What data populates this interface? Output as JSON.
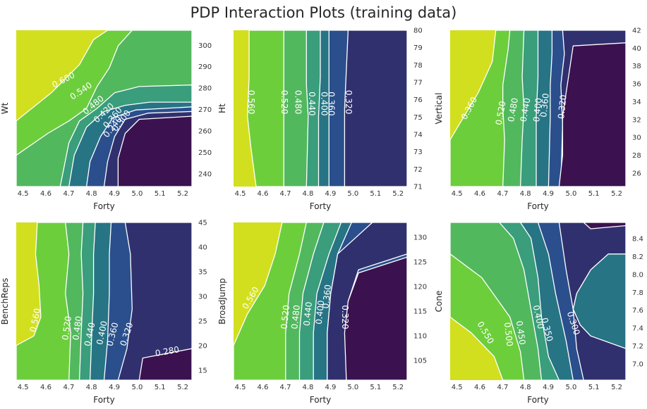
{
  "title": "PDP Interaction Plots (training data)",
  "colors": {
    "contour_levels": [
      "#d2df1f",
      "#6dce3c",
      "#52b85e",
      "#3a9d7b",
      "#277485",
      "#2a4f8c",
      "#31306f",
      "#3b124f"
    ]
  },
  "chart_data": [
    {
      "type": "contour",
      "xlabel": "Forty",
      "ylabel": "Wt",
      "x_ticks": [
        "4.5",
        "4.6",
        "4.7",
        "4.8",
        "4.9",
        "5.0",
        "5.1",
        "5.2"
      ],
      "y_ticks": [
        "240",
        "250",
        "260",
        "270",
        "280",
        "290",
        "300"
      ],
      "xlim": [
        4.47,
        5.24
      ],
      "ylim": [
        234,
        307
      ],
      "contour_labels": [
        "0.600",
        "0.540",
        "0.480",
        "0.420",
        "0.360",
        "0.300",
        "0.240"
      ],
      "grid": false
    },
    {
      "type": "contour",
      "xlabel": "Forty",
      "ylabel": "Ht",
      "x_ticks": [
        "4.5",
        "4.6",
        "4.7",
        "4.8",
        "4.9",
        "5.0",
        "5.1",
        "5.2"
      ],
      "y_ticks": [
        "71",
        "72",
        "73",
        "74",
        "75",
        "76",
        "77",
        "78",
        "79",
        "80"
      ],
      "xlim": [
        4.47,
        5.24
      ],
      "ylim": [
        71,
        80
      ],
      "contour_labels": [
        "0.560",
        "0.520",
        "0.480",
        "0.440",
        "0.400",
        "0.360",
        "0.320"
      ],
      "grid": false
    },
    {
      "type": "contour",
      "xlabel": "Forty",
      "ylabel": "Vertical",
      "x_ticks": [
        "4.5",
        "4.6",
        "4.7",
        "4.8",
        "4.9",
        "5.0",
        "5.1",
        "5.2"
      ],
      "y_ticks": [
        "26",
        "28",
        "30",
        "32",
        "34",
        "36",
        "38",
        "40",
        "42"
      ],
      "xlim": [
        4.47,
        5.24
      ],
      "ylim": [
        24.5,
        42
      ],
      "contour_labels": [
        "0.360",
        "0.520",
        "0.480",
        "0.440",
        "0.400",
        "0.360",
        "0.320"
      ],
      "grid": false
    },
    {
      "type": "contour",
      "xlabel": "Forty",
      "ylabel": "BenchReps",
      "x_ticks": [
        "4.5",
        "4.6",
        "4.7",
        "4.8",
        "4.9",
        "5.0",
        "5.1",
        "5.2"
      ],
      "y_ticks": [
        "15",
        "20",
        "25",
        "30",
        "35",
        "40",
        "45"
      ],
      "xlim": [
        4.47,
        5.24
      ],
      "ylim": [
        13,
        45
      ],
      "contour_labels": [
        "0.560",
        "0.520",
        "0.480",
        "0.440",
        "0.400",
        "0.360",
        "0.320",
        "0.280"
      ],
      "grid": false
    },
    {
      "type": "contour",
      "xlabel": "Forty",
      "ylabel": "BroadJump",
      "x_ticks": [
        "4.5",
        "4.6",
        "4.7",
        "4.8",
        "4.9",
        "5.0",
        "5.1",
        "5.2"
      ],
      "y_ticks": [
        "105",
        "110",
        "115",
        "120",
        "125",
        "130"
      ],
      "xlim": [
        4.47,
        5.24
      ],
      "ylim": [
        101,
        133
      ],
      "contour_labels": [
        "0.560",
        "0.520",
        "0.480",
        "0.440",
        "0.400",
        "0.360",
        "0.320"
      ],
      "grid": false
    },
    {
      "type": "contour",
      "xlabel": "Forty",
      "ylabel": "Cone",
      "x_ticks": [
        "4.5",
        "4.6",
        "4.7",
        "4.8",
        "4.9",
        "5.0",
        "5.1",
        "5.2"
      ],
      "y_ticks": [
        "7.0",
        "7.2",
        "7.4",
        "7.6",
        "7.8",
        "8.0",
        "8.2",
        "8.4"
      ],
      "xlim": [
        4.47,
        5.24
      ],
      "ylim": [
        6.82,
        8.58
      ],
      "contour_labels": [
        "0.550",
        "0.500",
        "0.450",
        "0.400",
        "0.350",
        "0.300"
      ],
      "grid": false
    }
  ]
}
